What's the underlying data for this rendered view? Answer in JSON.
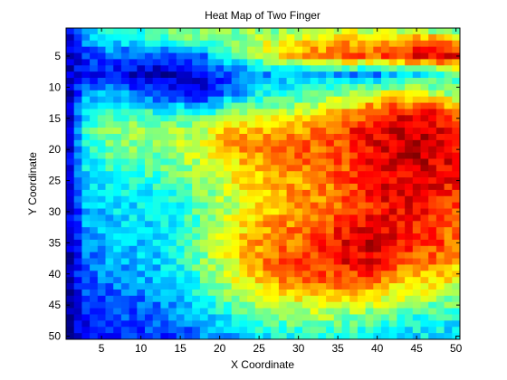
{
  "chart_data": {
    "type": "heatmap",
    "title": "Heat Map of Two Finger",
    "xlabel": "X Coordinate",
    "ylabel": "Y Coordinate",
    "x_ticks": [
      5,
      10,
      15,
      20,
      25,
      30,
      35,
      40,
      45,
      50
    ],
    "y_ticks": [
      5,
      10,
      15,
      20,
      25,
      30,
      35,
      40,
      45,
      50
    ],
    "xlim": [
      0.5,
      50.5
    ],
    "ylim": [
      0.5,
      50.5
    ],
    "y_direction": "reversed",
    "grid": false,
    "colormap": "jet",
    "value_range": [
      0,
      1
    ],
    "rows": 50,
    "cols": 50,
    "coarse_columns_x": [
      1,
      3,
      6,
      9,
      12,
      15,
      18,
      21,
      24,
      27,
      30,
      33,
      36,
      39,
      42,
      45,
      48,
      50
    ],
    "coarse_rows_y": [
      1,
      3,
      5,
      8,
      11,
      14,
      17,
      20,
      23,
      26,
      29,
      32,
      35,
      38,
      41,
      44,
      47,
      50
    ],
    "coarse_values": [
      [
        0.12,
        0.3,
        0.4,
        0.42,
        0.45,
        0.5,
        0.48,
        0.5,
        0.52,
        0.5,
        0.55,
        0.58,
        0.6,
        0.55,
        0.58,
        0.55,
        0.52,
        0.4
      ],
      [
        0.1,
        0.25,
        0.32,
        0.35,
        0.38,
        0.45,
        0.45,
        0.48,
        0.55,
        0.6,
        0.65,
        0.7,
        0.72,
        0.7,
        0.75,
        0.8,
        0.82,
        0.75
      ],
      [
        0.08,
        0.18,
        0.22,
        0.2,
        0.18,
        0.2,
        0.25,
        0.38,
        0.5,
        0.6,
        0.68,
        0.75,
        0.78,
        0.78,
        0.82,
        0.88,
        0.9,
        0.88
      ],
      [
        0.06,
        0.15,
        0.15,
        0.08,
        0.05,
        0.05,
        0.1,
        0.2,
        0.25,
        0.3,
        0.3,
        0.3,
        0.28,
        0.25,
        0.3,
        0.35,
        0.4,
        0.45
      ],
      [
        0.08,
        0.25,
        0.3,
        0.25,
        0.18,
        0.12,
        0.1,
        0.25,
        0.35,
        0.4,
        0.42,
        0.45,
        0.5,
        0.55,
        0.6,
        0.58,
        0.55,
        0.5
      ],
      [
        0.1,
        0.35,
        0.45,
        0.45,
        0.4,
        0.4,
        0.4,
        0.5,
        0.55,
        0.55,
        0.6,
        0.65,
        0.7,
        0.8,
        0.85,
        0.88,
        0.85,
        0.8
      ],
      [
        0.1,
        0.4,
        0.5,
        0.52,
        0.5,
        0.52,
        0.58,
        0.68,
        0.7,
        0.72,
        0.72,
        0.75,
        0.82,
        0.88,
        0.92,
        0.92,
        0.9,
        0.85
      ],
      [
        0.1,
        0.4,
        0.48,
        0.5,
        0.5,
        0.55,
        0.62,
        0.7,
        0.72,
        0.75,
        0.78,
        0.78,
        0.82,
        0.88,
        0.92,
        0.95,
        0.92,
        0.88
      ],
      [
        0.1,
        0.35,
        0.42,
        0.45,
        0.45,
        0.5,
        0.55,
        0.62,
        0.68,
        0.72,
        0.75,
        0.78,
        0.8,
        0.85,
        0.9,
        0.92,
        0.9,
        0.88
      ],
      [
        0.1,
        0.32,
        0.38,
        0.4,
        0.4,
        0.45,
        0.5,
        0.58,
        0.65,
        0.7,
        0.72,
        0.75,
        0.78,
        0.85,
        0.9,
        0.9,
        0.88,
        0.85
      ],
      [
        0.08,
        0.3,
        0.35,
        0.35,
        0.35,
        0.4,
        0.48,
        0.55,
        0.62,
        0.68,
        0.72,
        0.75,
        0.8,
        0.85,
        0.88,
        0.88,
        0.85,
        0.82
      ],
      [
        0.08,
        0.28,
        0.32,
        0.35,
        0.35,
        0.4,
        0.48,
        0.58,
        0.68,
        0.72,
        0.75,
        0.78,
        0.85,
        0.9,
        0.88,
        0.85,
        0.82,
        0.78
      ],
      [
        0.08,
        0.25,
        0.3,
        0.32,
        0.35,
        0.42,
        0.5,
        0.62,
        0.7,
        0.75,
        0.78,
        0.82,
        0.9,
        0.92,
        0.88,
        0.82,
        0.8,
        0.75
      ],
      [
        0.06,
        0.22,
        0.28,
        0.3,
        0.32,
        0.4,
        0.5,
        0.6,
        0.7,
        0.78,
        0.82,
        0.85,
        0.88,
        0.88,
        0.82,
        0.78,
        0.75,
        0.7
      ],
      [
        0.06,
        0.2,
        0.25,
        0.28,
        0.3,
        0.35,
        0.45,
        0.55,
        0.65,
        0.72,
        0.75,
        0.78,
        0.8,
        0.78,
        0.72,
        0.68,
        0.65,
        0.62
      ],
      [
        0.05,
        0.18,
        0.2,
        0.22,
        0.25,
        0.3,
        0.38,
        0.48,
        0.55,
        0.6,
        0.62,
        0.65,
        0.65,
        0.62,
        0.58,
        0.55,
        0.52,
        0.5
      ],
      [
        0.05,
        0.15,
        0.18,
        0.2,
        0.22,
        0.25,
        0.3,
        0.38,
        0.45,
        0.48,
        0.5,
        0.52,
        0.5,
        0.48,
        0.45,
        0.42,
        0.4,
        0.4
      ],
      [
        0.05,
        0.12,
        0.15,
        0.15,
        0.18,
        0.2,
        0.25,
        0.3,
        0.35,
        0.38,
        0.4,
        0.4,
        0.4,
        0.38,
        0.35,
        0.35,
        0.35,
        0.32
      ]
    ]
  }
}
